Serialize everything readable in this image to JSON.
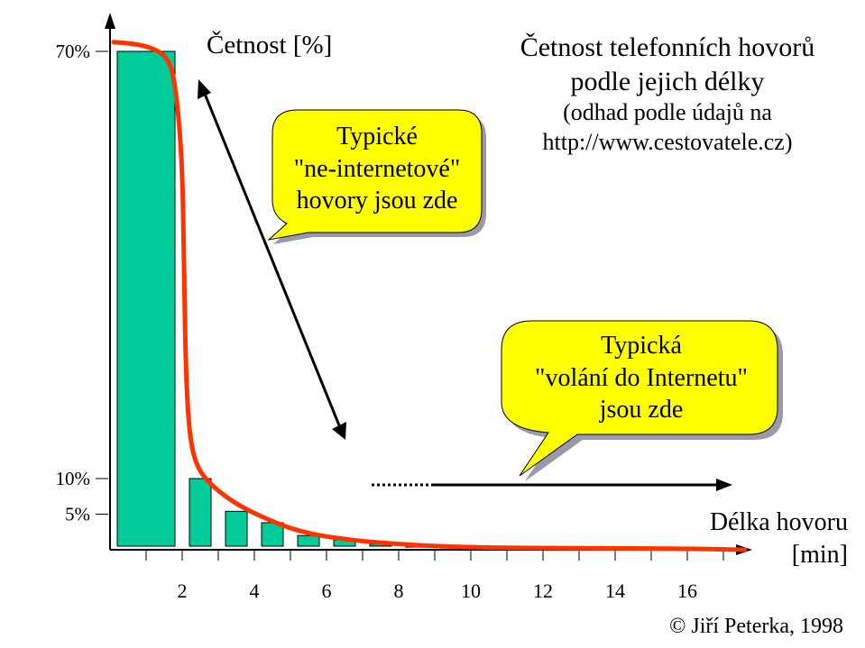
{
  "title": {
    "line1": "Četnost telefonních hovorů",
    "line2": "podle jejich délky",
    "line3": "(odhad podle údajů na",
    "line4": "http://www.cestovatele.cz)"
  },
  "copyright": "© Jiří Peterka, 1998",
  "callouts": {
    "internet_typical": [
      "Typické",
      "\"ne-internetové\"",
      "hovory jsou zde"
    ],
    "typical_internet_calls": [
      "Typická",
      "\"volání do Internetu\"",
      "jsou zde"
    ]
  },
  "colors": {
    "bar": "#00cc99",
    "curve": "#ff3300",
    "callout_fill": "#ffff00",
    "callout_shadow": "#9999aa"
  },
  "chart_data": {
    "type": "bar",
    "title": "Četnost telefonních hovorů podle jejich délky",
    "subtitle": "(odhad podle údajů na http://www.cestovatele.cz)",
    "ylabel": "Četnost [%]",
    "xlabel": "Délka hovoru [min]",
    "ylim": [
      0,
      75
    ],
    "xlim": [
      0,
      18
    ],
    "y_ticks": [
      {
        "value": 70,
        "label": "70%"
      },
      {
        "value": 10,
        "label": "10%"
      },
      {
        "value": 5,
        "label": "5%"
      }
    ],
    "x_tick_labels": [
      {
        "value": 2,
        "label": "2"
      },
      {
        "value": 4,
        "label": "4"
      },
      {
        "value": 6,
        "label": "6"
      },
      {
        "value": 8,
        "label": "8"
      },
      {
        "value": 10,
        "label": "10"
      },
      {
        "value": 12,
        "label": "12"
      },
      {
        "value": 14,
        "label": "14"
      },
      {
        "value": 16,
        "label": "16"
      }
    ],
    "bars": [
      {
        "x0": 0.2,
        "x1": 1.8,
        "value": 70
      },
      {
        "x0": 2.2,
        "x1": 2.8,
        "value": 10
      },
      {
        "x0": 3.2,
        "x1": 3.8,
        "value": 5.4
      },
      {
        "x0": 4.2,
        "x1": 4.8,
        "value": 3.8
      },
      {
        "x0": 5.2,
        "x1": 5.8,
        "value": 2.0
      },
      {
        "x0": 6.2,
        "x1": 6.8,
        "value": 1.4
      },
      {
        "x0": 7.2,
        "x1": 7.8,
        "value": 0.8
      },
      {
        "x0": 8.2,
        "x1": 8.8,
        "value": 0.5
      }
    ],
    "curve": [
      [
        0.1,
        71.3
      ],
      [
        0.8,
        71.0
      ],
      [
        1.3,
        70.2
      ],
      [
        1.6,
        69.0
      ],
      [
        1.8,
        66.0
      ],
      [
        2.0,
        55.0
      ],
      [
        2.05,
        40.0
      ],
      [
        2.1,
        25.0
      ],
      [
        2.2,
        16.0
      ],
      [
        2.4,
        11.6
      ],
      [
        2.8,
        9.1
      ],
      [
        3.3,
        7.1
      ],
      [
        3.8,
        5.6
      ],
      [
        4.4,
        4.2
      ],
      [
        5.0,
        3.0
      ],
      [
        5.6,
        2.2
      ],
      [
        6.2,
        1.7
      ],
      [
        7.0,
        1.2
      ],
      [
        8.0,
        0.8
      ],
      [
        9.0,
        0.5
      ],
      [
        10.5,
        0.3
      ],
      [
        12.0,
        0.25
      ],
      [
        14.0,
        0.2
      ],
      [
        16.0,
        0.15
      ],
      [
        17.6,
        0.0
      ]
    ],
    "grid": false
  }
}
